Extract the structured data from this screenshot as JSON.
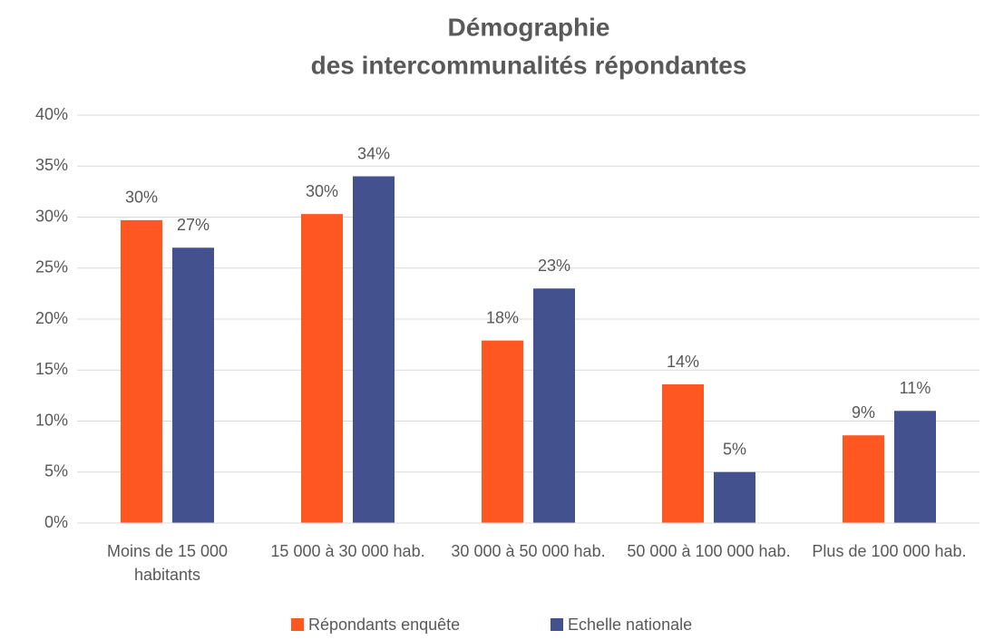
{
  "chart_data": {
    "type": "bar",
    "title": [
      "Démographie",
      "des intercommunalités répondantes"
    ],
    "categories": [
      "Moins de 15 000 habitants",
      "15 000 à 30 000 hab.",
      "30 000 à 50 000 hab.",
      "50 000 à 100 000 hab.",
      "Plus de 100 000 hab."
    ],
    "series": [
      {
        "name": "Répondants enquête",
        "color": "#ff5722",
        "values": [
          29.7,
          30.3,
          17.9,
          13.6,
          8.6
        ],
        "value_labels": [
          "30%",
          "30%",
          "18%",
          "14%",
          "9%"
        ]
      },
      {
        "name": "Echelle nationale",
        "color": "#44518f",
        "values": [
          27,
          34,
          23,
          5,
          11
        ],
        "value_labels": [
          "27%",
          "34%",
          "23%",
          "5%",
          "11%"
        ]
      }
    ],
    "ylim": [
      0,
      40
    ],
    "yticks": [
      {
        "value": 0,
        "label": "0%"
      },
      {
        "value": 5,
        "label": "5%"
      },
      {
        "value": 10,
        "label": "10%"
      },
      {
        "value": 15,
        "label": "15%"
      },
      {
        "value": 20,
        "label": "20%"
      },
      {
        "value": 25,
        "label": "25%"
      },
      {
        "value": 30,
        "label": "30%"
      },
      {
        "value": 35,
        "label": "35%"
      },
      {
        "value": 40,
        "label": "40%"
      }
    ],
    "grid": true,
    "legend": "bottom"
  }
}
